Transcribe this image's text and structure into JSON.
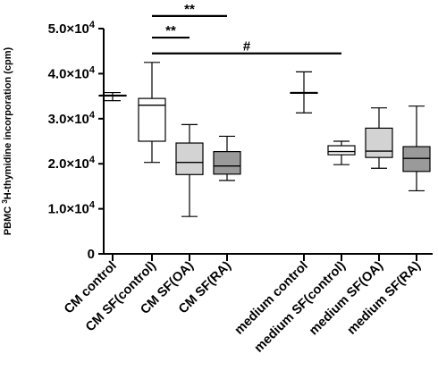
{
  "chart_data": {
    "type": "box",
    "ylabel_prefix": "PBMC ",
    "ylabel_sup": "3",
    "ylabel_suffix": "H-thymidine incorporation (cpm)",
    "ylim": [
      0,
      50000
    ],
    "y_ticks": [
      {
        "value": 0,
        "base": "0",
        "exp": ""
      },
      {
        "value": 10000,
        "base": "1.0×10",
        "exp": "4"
      },
      {
        "value": 20000,
        "base": "2.0×10",
        "exp": "4"
      },
      {
        "value": 30000,
        "base": "3.0×10",
        "exp": "4"
      },
      {
        "value": 40000,
        "base": "4.0×10",
        "exp": "4"
      },
      {
        "value": 50000,
        "base": "5.0×10",
        "exp": "4"
      }
    ],
    "categories": [
      "CM control",
      "CM SF(control)",
      "CM SF(OA)",
      "CM SF(RA)",
      "medium control",
      "medium SF(control)",
      "medium SF(OA)",
      "medium SF(RA)"
    ],
    "boxes": [
      {
        "category": "CM control",
        "min": 34000,
        "q1": 35200,
        "median": 35200,
        "q3": 35200,
        "max": 35800,
        "fill": "#ffffff"
      },
      {
        "category": "CM SF(control)",
        "min": 20300,
        "q1": 25000,
        "median": 33000,
        "q3": 34500,
        "max": 42500,
        "fill": "#ffffff"
      },
      {
        "category": "CM SF(OA)",
        "min": 8300,
        "q1": 17600,
        "median": 20300,
        "q3": 24600,
        "max": 28700,
        "fill": "#d3d3d3"
      },
      {
        "category": "CM SF(RA)",
        "min": 16300,
        "q1": 17700,
        "median": 19500,
        "q3": 22700,
        "max": 26100,
        "fill": "#9a9a9a"
      },
      {
        "category": "medium control",
        "min": 31300,
        "q1": 35800,
        "median": 35800,
        "q3": 35800,
        "max": 40400,
        "fill": "#ffffff"
      },
      {
        "category": "medium SF(control)",
        "min": 19800,
        "q1": 22000,
        "median": 22700,
        "q3": 24000,
        "max": 25000,
        "fill": "#ffffff"
      },
      {
        "category": "medium SF(OA)",
        "min": 19000,
        "q1": 21400,
        "median": 22800,
        "q3": 27900,
        "max": 32400,
        "fill": "#d3d3d3"
      },
      {
        "category": "medium SF(RA)",
        "min": 14000,
        "q1": 18300,
        "median": 21200,
        "q3": 23800,
        "max": 32800,
        "fill": "#9a9a9a"
      }
    ],
    "significance": [
      {
        "from": "CM SF(control)",
        "to": "CM SF(RA)",
        "y": 52800,
        "label": "**"
      },
      {
        "from": "CM SF(control)",
        "to": "CM SF(OA)",
        "y": 48000,
        "label": "**"
      },
      {
        "from": "CM SF(control)",
        "to": "medium SF(control)",
        "y": 44500,
        "label": "#"
      }
    ]
  }
}
